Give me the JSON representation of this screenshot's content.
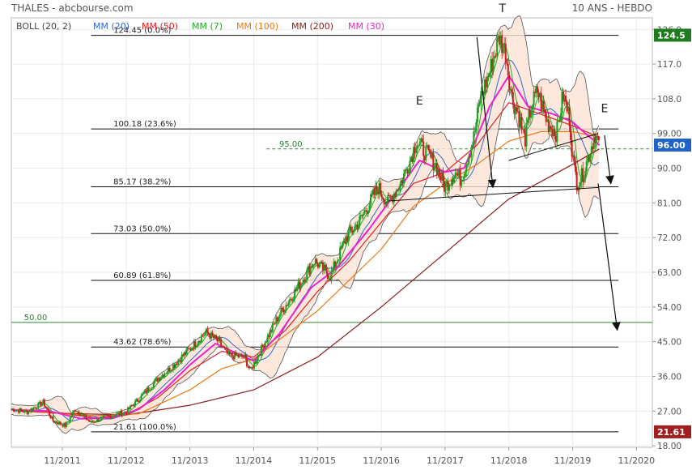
{
  "header": {
    "title": "THALES - abcbourse.com",
    "period": "10 ANS - HEBDO"
  },
  "legend": [
    {
      "label": "BOLL (20, 2)",
      "color": "#444444"
    },
    {
      "label": "MM (20)",
      "color": "#3366cc"
    },
    {
      "label": "MM (50)",
      "color": "#dd2222"
    },
    {
      "label": "MM (7)",
      "color": "#22aa22"
    },
    {
      "label": "MM (100)",
      "color": "#ee7711"
    },
    {
      "label": "MM (200)",
      "color": "#8b1a1a"
    },
    {
      "label": "MM (30)",
      "color": "#ee22cc"
    }
  ],
  "annotations": {
    "pattern_labels": [
      {
        "text": "E",
        "x": 2016.6,
        "y": 106.5
      },
      {
        "text": "T",
        "x": 2017.9,
        "y": 130.5
      },
      {
        "text": "E",
        "x": 2019.5,
        "y": 104.5
      }
    ],
    "line_50_label": "50.00",
    "line_95_label": "95.00"
  },
  "price_badges": [
    {
      "value": "124.5",
      "y": 124.5,
      "color": "#1e7b1e"
    },
    {
      "value": "96.00",
      "y": 96.0,
      "color": "#1e64c8"
    },
    {
      "value": "21.61",
      "y": 21.61,
      "color": "#a01e1e"
    }
  ],
  "chart_data": {
    "type": "line",
    "y_axis_position": "right",
    "grid": true,
    "xlim": [
      2010.2,
      2020.25
    ],
    "ylim": [
      17.6,
      129.0
    ],
    "x_ticks": [
      {
        "label": "11/2011",
        "x": 2011.0
      },
      {
        "label": "11/2012",
        "x": 2012.0
      },
      {
        "label": "11/2013",
        "x": 2013.0
      },
      {
        "label": "11/2014",
        "x": 2014.0
      },
      {
        "label": "11/2015",
        "x": 2015.0
      },
      {
        "label": "11/2016",
        "x": 2016.0
      },
      {
        "label": "11/2017",
        "x": 2017.0
      },
      {
        "label": "11/2018",
        "x": 2018.0
      },
      {
        "label": "11/2019",
        "x": 2019.0
      },
      {
        "label": "11/2020",
        "x": 2020.0
      }
    ],
    "y_ticks": [
      "126.0",
      "117.0",
      "108.0",
      "99.00",
      "90.00",
      "81.00",
      "72.00",
      "63.00",
      "54.00",
      "45.00",
      "36.00",
      "27.00",
      "18.00"
    ],
    "y_tick_values": [
      126,
      117,
      108,
      99,
      90,
      81,
      72,
      63,
      54,
      45,
      36,
      27,
      18
    ],
    "fibonacci_levels": [
      {
        "label": "124.45  (0.0%)",
        "value": 124.45
      },
      {
        "label": "100.18  (23.6%)",
        "value": 100.18
      },
      {
        "label": "85.17  (38.2%)",
        "value": 85.17
      },
      {
        "label": "73.03  (50.0%)",
        "value": 73.03
      },
      {
        "label": "60.89  (61.8%)",
        "value": 60.89
      },
      {
        "label": "43.62  (78.6%)",
        "value": 43.62
      },
      {
        "label": "21.61  (100.0%)",
        "value": 21.61
      }
    ],
    "horizontal_lines": [
      {
        "label": "50.00",
        "value": 50.0,
        "color": "#2e8b2e",
        "style": "solid"
      },
      {
        "label": "95.00",
        "value": 95.0,
        "color": "#2e8b2e",
        "style": "dashed"
      }
    ],
    "price_key_points": [
      {
        "x": 2010.2,
        "y": 27.5
      },
      {
        "x": 2010.45,
        "y": 26.8
      },
      {
        "x": 2010.7,
        "y": 29.3
      },
      {
        "x": 2010.85,
        "y": 24.5
      },
      {
        "x": 2011.05,
        "y": 23.2
      },
      {
        "x": 2011.2,
        "y": 27.5
      },
      {
        "x": 2011.45,
        "y": 24.0
      },
      {
        "x": 2011.7,
        "y": 25.6
      },
      {
        "x": 2012.0,
        "y": 26.8
      },
      {
        "x": 2012.25,
        "y": 31.0
      },
      {
        "x": 2012.5,
        "y": 35.5
      },
      {
        "x": 2012.75,
        "y": 39.0
      },
      {
        "x": 2013.05,
        "y": 44.0
      },
      {
        "x": 2013.25,
        "y": 47.5
      },
      {
        "x": 2013.45,
        "y": 45.0
      },
      {
        "x": 2013.6,
        "y": 41.5
      },
      {
        "x": 2013.85,
        "y": 41.0
      },
      {
        "x": 2013.95,
        "y": 37.5
      },
      {
        "x": 2014.15,
        "y": 44.0
      },
      {
        "x": 2014.4,
        "y": 52.0
      },
      {
        "x": 2014.65,
        "y": 58.0
      },
      {
        "x": 2014.95,
        "y": 66.0
      },
      {
        "x": 2015.2,
        "y": 62.0
      },
      {
        "x": 2015.45,
        "y": 72.0
      },
      {
        "x": 2015.65,
        "y": 76.0
      },
      {
        "x": 2015.95,
        "y": 85.0
      },
      {
        "x": 2016.1,
        "y": 81.0
      },
      {
        "x": 2016.3,
        "y": 86.0
      },
      {
        "x": 2016.45,
        "y": 92.0
      },
      {
        "x": 2016.55,
        "y": 97.0
      },
      {
        "x": 2016.7,
        "y": 94.0
      },
      {
        "x": 2016.85,
        "y": 91.0
      },
      {
        "x": 2017.0,
        "y": 85.0
      },
      {
        "x": 2017.15,
        "y": 89.0
      },
      {
        "x": 2017.25,
        "y": 87.0
      },
      {
        "x": 2017.45,
        "y": 98.0
      },
      {
        "x": 2017.55,
        "y": 108.0
      },
      {
        "x": 2017.7,
        "y": 115.0
      },
      {
        "x": 2017.85,
        "y": 124.0
      },
      {
        "x": 2017.95,
        "y": 120.0
      },
      {
        "x": 2018.05,
        "y": 108.0
      },
      {
        "x": 2018.15,
        "y": 104.0
      },
      {
        "x": 2018.25,
        "y": 97.0
      },
      {
        "x": 2018.35,
        "y": 106.0
      },
      {
        "x": 2018.45,
        "y": 110.0
      },
      {
        "x": 2018.6,
        "y": 102.0
      },
      {
        "x": 2018.75,
        "y": 99.0
      },
      {
        "x": 2018.85,
        "y": 109.0
      },
      {
        "x": 2018.95,
        "y": 103.0
      },
      {
        "x": 2019.0,
        "y": 93.0
      },
      {
        "x": 2019.07,
        "y": 86.0
      },
      {
        "x": 2019.15,
        "y": 88.0
      },
      {
        "x": 2019.25,
        "y": 93.0
      },
      {
        "x": 2019.35,
        "y": 99.0
      },
      {
        "x": 2019.42,
        "y": 96.0
      }
    ],
    "moving_averages": [
      {
        "name": "MM (200)",
        "color": "#8b1a1a",
        "points": [
          {
            "x": 2010.8,
            "y": 26.5
          },
          {
            "x": 2012.0,
            "y": 26.0
          },
          {
            "x": 2013.0,
            "y": 28.5
          },
          {
            "x": 2014.0,
            "y": 32.5
          },
          {
            "x": 2015.0,
            "y": 41.0
          },
          {
            "x": 2016.0,
            "y": 54.0
          },
          {
            "x": 2017.0,
            "y": 68.0
          },
          {
            "x": 2018.0,
            "y": 82.0
          },
          {
            "x": 2019.0,
            "y": 91.0
          },
          {
            "x": 2019.42,
            "y": 95.0
          }
        ]
      },
      {
        "name": "MM (100)",
        "color": "#ee7711",
        "points": [
          {
            "x": 2010.5,
            "y": 27.0
          },
          {
            "x": 2011.5,
            "y": 25.8
          },
          {
            "x": 2012.2,
            "y": 26.3
          },
          {
            "x": 2013.0,
            "y": 32.5
          },
          {
            "x": 2013.5,
            "y": 38.0
          },
          {
            "x": 2014.0,
            "y": 40.5
          },
          {
            "x": 2015.0,
            "y": 53.0
          },
          {
            "x": 2016.0,
            "y": 69.0
          },
          {
            "x": 2016.5,
            "y": 80.0
          },
          {
            "x": 2017.0,
            "y": 86.0
          },
          {
            "x": 2017.5,
            "y": 91.0
          },
          {
            "x": 2018.0,
            "y": 97.0
          },
          {
            "x": 2018.5,
            "y": 99.5
          },
          {
            "x": 2019.0,
            "y": 99.5
          },
          {
            "x": 2019.42,
            "y": 98.0
          }
        ]
      },
      {
        "name": "MM (50)",
        "color": "#dd2222",
        "points": [
          {
            "x": 2010.3,
            "y": 27.0
          },
          {
            "x": 2011.0,
            "y": 26.5
          },
          {
            "x": 2011.5,
            "y": 25.2
          },
          {
            "x": 2012.0,
            "y": 26.0
          },
          {
            "x": 2012.5,
            "y": 30.5
          },
          {
            "x": 2013.0,
            "y": 37.5
          },
          {
            "x": 2013.5,
            "y": 42.5
          },
          {
            "x": 2014.0,
            "y": 41.0
          },
          {
            "x": 2014.5,
            "y": 48.0
          },
          {
            "x": 2015.0,
            "y": 58.0
          },
          {
            "x": 2015.5,
            "y": 66.0
          },
          {
            "x": 2016.0,
            "y": 76.0
          },
          {
            "x": 2016.5,
            "y": 86.0
          },
          {
            "x": 2017.0,
            "y": 89.0
          },
          {
            "x": 2017.5,
            "y": 96.0
          },
          {
            "x": 2018.0,
            "y": 107.0
          },
          {
            "x": 2018.5,
            "y": 104.0
          },
          {
            "x": 2019.0,
            "y": 101.0
          },
          {
            "x": 2019.42,
            "y": 98.0
          }
        ]
      },
      {
        "name": "MM (30)",
        "color": "#ee22cc",
        "points": [
          {
            "x": 2010.2,
            "y": 27.3
          },
          {
            "x": 2010.8,
            "y": 27.0
          },
          {
            "x": 2011.3,
            "y": 25.0
          },
          {
            "x": 2011.8,
            "y": 25.3
          },
          {
            "x": 2012.2,
            "y": 27.5
          },
          {
            "x": 2012.6,
            "y": 32.5
          },
          {
            "x": 2013.0,
            "y": 39.0
          },
          {
            "x": 2013.4,
            "y": 44.5
          },
          {
            "x": 2013.8,
            "y": 41.5
          },
          {
            "x": 2014.0,
            "y": 40.0
          },
          {
            "x": 2014.4,
            "y": 47.0
          },
          {
            "x": 2014.9,
            "y": 59.0
          },
          {
            "x": 2015.3,
            "y": 64.0
          },
          {
            "x": 2015.8,
            "y": 74.0
          },
          {
            "x": 2016.2,
            "y": 83.0
          },
          {
            "x": 2016.6,
            "y": 92.0
          },
          {
            "x": 2017.0,
            "y": 89.0
          },
          {
            "x": 2017.3,
            "y": 90.0
          },
          {
            "x": 2017.7,
            "y": 106.0
          },
          {
            "x": 2018.0,
            "y": 114.0
          },
          {
            "x": 2018.3,
            "y": 106.0
          },
          {
            "x": 2018.7,
            "y": 104.0
          },
          {
            "x": 2019.0,
            "y": 102.0
          },
          {
            "x": 2019.2,
            "y": 99.0
          },
          {
            "x": 2019.42,
            "y": 96.0
          }
        ]
      }
    ],
    "trendlines": [
      {
        "from": {
          "x": 2016.1,
          "y": 81.5
        },
        "to": {
          "x": 2019.4,
          "y": 85.0
        }
      },
      {
        "from": {
          "x": 2018.0,
          "y": 92.0
        },
        "to": {
          "x": 2019.4,
          "y": 99.0
        }
      }
    ],
    "projection_arrows": [
      {
        "from": {
          "x": 2017.5,
          "y": 124.0
        },
        "to": {
          "x": 2017.75,
          "y": 85.0
        }
      },
      {
        "from": {
          "x": 2019.5,
          "y": 98.5
        },
        "to": {
          "x": 2019.6,
          "y": 86.0
        }
      },
      {
        "from": {
          "x": 2019.4,
          "y": 86.0
        },
        "to": {
          "x": 2019.7,
          "y": 48.0
        }
      }
    ]
  }
}
